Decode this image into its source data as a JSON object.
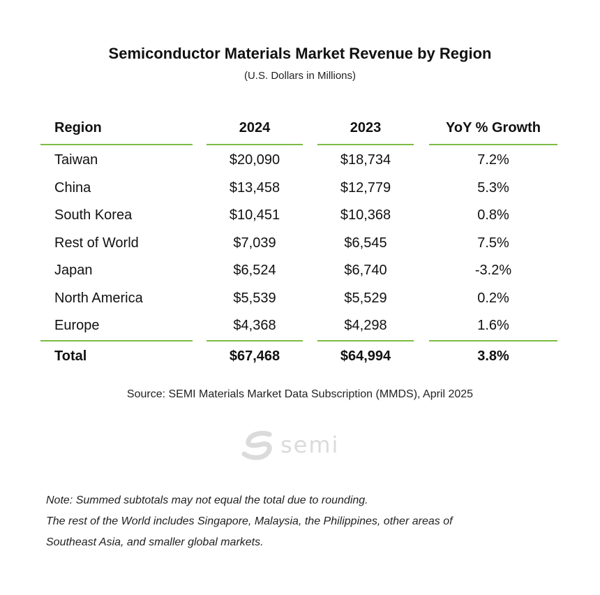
{
  "header": {
    "title": "Semiconductor Materials Market Revenue by Region",
    "subtitle": "(U.S. Dollars in Millions)"
  },
  "table": {
    "columns": [
      "Region",
      "2024",
      "2023",
      "YoY % Growth"
    ],
    "rows": [
      {
        "region": "Taiwan",
        "y2024": "$20,090",
        "y2023": "$18,734",
        "yoy": "7.2%"
      },
      {
        "region": "China",
        "y2024": "$13,458",
        "y2023": "$12,779",
        "yoy": "5.3%"
      },
      {
        "region": "South Korea",
        "y2024": "$10,451",
        "y2023": "$10,368",
        "yoy": "0.8%"
      },
      {
        "region": "Rest of World",
        "y2024": "$7,039",
        "y2023": "$6,545",
        "yoy": "7.5%"
      },
      {
        "region": "Japan",
        "y2024": "$6,524",
        "y2023": "$6,740",
        "yoy": "-3.2%"
      },
      {
        "region": "North America",
        "y2024": "$5,539",
        "y2023": "$5,529",
        "yoy": "0.2%"
      },
      {
        "region": "Europe",
        "y2024": "$4,368",
        "y2023": "$4,298",
        "yoy": "1.6%"
      }
    ],
    "total": {
      "region": "Total",
      "y2024": "$67,468",
      "y2023": "$64,994",
      "yoy": "3.8%"
    }
  },
  "source": "Source: SEMI Materials Market Data Subscription (MMDS), April 2025",
  "logo": {
    "text": "semi",
    "icon": "semi-logo-icon"
  },
  "notes": [
    "Note: Summed subtotals may not equal the total due to rounding.",
    "The rest of the World includes Singapore, Malaysia, the Philippines, other areas of",
    "Southeast Asia, and smaller global markets."
  ],
  "colors": {
    "accent_rule": "#7dbb42",
    "watermark": "#9a9a9a"
  }
}
